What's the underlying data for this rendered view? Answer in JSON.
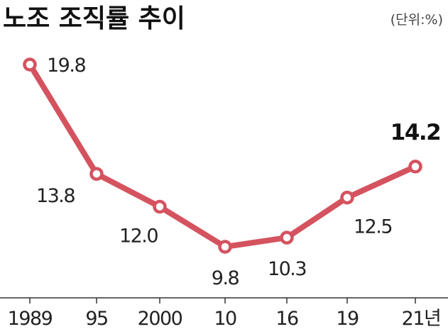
{
  "chart_data": {
    "type": "line",
    "title": "노조 조직률 추이",
    "unit": "(단위:%)",
    "categories": [
      "1989",
      "95",
      "2000",
      "10",
      "16",
      "19",
      "21년"
    ],
    "values": [
      19.8,
      13.8,
      12.0,
      9.8,
      10.3,
      12.5,
      14.2
    ],
    "value_labels": [
      "19.8",
      "13.8",
      "12.0",
      "9.8",
      "10.3",
      "12.5",
      "14.2"
    ],
    "highlight_index": 6,
    "ylim": [
      9.8,
      19.8
    ],
    "colors": {
      "line": "#d4535f",
      "marker_fill": "#ffffff",
      "axis": "#333333"
    }
  }
}
